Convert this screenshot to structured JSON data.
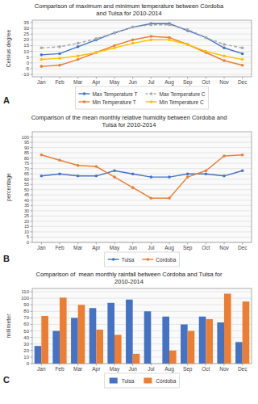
{
  "chart_data": [
    {
      "type": "line",
      "title": "Comparison of maximum and minimum temperature between Córdoba\nand Tulsa for 2010-2014",
      "y_label": "Celsius degree",
      "annotation": "A",
      "categories": [
        "Jan",
        "Feb",
        "Mar",
        "Apr",
        "May",
        "Jun",
        "Jul",
        "Aug",
        "Sep",
        "Oct",
        "Nov",
        "Dec"
      ],
      "series": [
        {
          "name": "Max Temperature T",
          "color": "#4472C4",
          "marker": "circle",
          "line_style": "solid",
          "values": [
            7,
            8,
            14,
            20,
            26,
            31,
            34,
            34,
            28,
            22,
            13,
            8
          ]
        },
        {
          "name": "Min Temperature T",
          "color": "#ED7D31",
          "marker": "circle",
          "line_style": "solid",
          "values": [
            -3,
            -2,
            3,
            9,
            15,
            20,
            23,
            22,
            16,
            9,
            2,
            -2
          ]
        },
        {
          "name": "Max Temperature C",
          "color": "#A9A9A9",
          "marker": "circle",
          "line_style": "dashed",
          "values": [
            13,
            14,
            17,
            21,
            26,
            31,
            33,
            33,
            29,
            22,
            16,
            13
          ]
        },
        {
          "name": "Min Temperature C",
          "color": "#FFC000",
          "marker": "circle",
          "line_style": "solid",
          "values": [
            3,
            4,
            6,
            9,
            13,
            17,
            20,
            20,
            16,
            10,
            6,
            3
          ]
        }
      ],
      "ylim": [
        -12,
        37
      ],
      "yticks": [
        -10,
        -5,
        0,
        5,
        10,
        15,
        20,
        25,
        30,
        35
      ],
      "grid": true,
      "legend": "bottom"
    },
    {
      "type": "line",
      "title": "Comparison of the mean monthly relative humidity between Córdoba and\nTulsa for 2010-2014",
      "y_label": "percentage",
      "annotation": "B",
      "categories": [
        "Jan",
        "Feb",
        "Mar",
        "Apr",
        "May",
        "Jun",
        "Jul",
        "Aug",
        "Sep",
        "Oct",
        "Nov",
        "Dec"
      ],
      "series": [
        {
          "name": "Tulsa",
          "color": "#4472C4",
          "marker": "circle",
          "line_style": "solid",
          "values": [
            63,
            65,
            63,
            63,
            68,
            65,
            62,
            62,
            65,
            65,
            63,
            68
          ]
        },
        {
          "name": "Córdoba",
          "color": "#ED7D31",
          "marker": "circle",
          "line_style": "solid",
          "values": [
            83,
            78,
            73,
            72,
            62,
            52,
            42,
            42,
            62,
            68,
            82,
            83
          ]
        }
      ],
      "ylim": [
        0,
        105
      ],
      "yticks": [
        0,
        5,
        10,
        15,
        20,
        25,
        30,
        35,
        40,
        45,
        50,
        55,
        60,
        65,
        70,
        75,
        80,
        85,
        90,
        95,
        100
      ],
      "grid": true,
      "legend": "bottom"
    },
    {
      "type": "bar",
      "title": "Comparison of  mean monthly rainfall between Córdoba and Tulsa for\n2010-2014",
      "y_label": "millimeter",
      "annotation": "C",
      "categories": [
        "Jan",
        "Feb",
        "Mar",
        "Apr",
        "May",
        "Jun",
        "Jul",
        "Aug",
        "Sep",
        "Oct",
        "Nov",
        "Dec"
      ],
      "series": [
        {
          "name": "Tulsa",
          "color": "#4472C4",
          "values": [
            27,
            50,
            70,
            85,
            93,
            98,
            80,
            72,
            60,
            72,
            63,
            33
          ]
        },
        {
          "name": "Córdoba",
          "color": "#ED7D31",
          "values": [
            73,
            101,
            90,
            52,
            44,
            15,
            0,
            20,
            50,
            68,
            107,
            95
          ]
        }
      ],
      "ylim": [
        0,
        115
      ],
      "yticks": [
        0,
        10,
        20,
        30,
        40,
        50,
        60,
        70,
        80,
        90,
        100,
        110
      ],
      "grid": true,
      "legend": "bottom"
    }
  ]
}
